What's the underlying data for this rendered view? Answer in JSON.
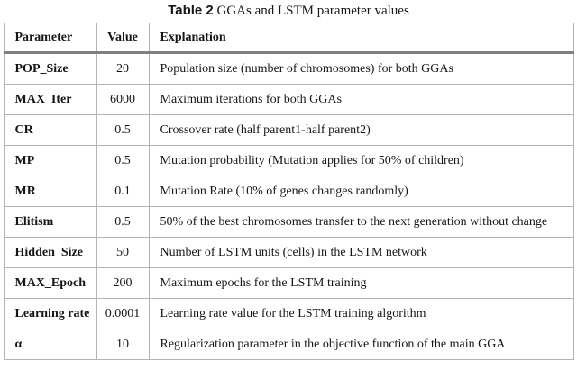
{
  "caption": {
    "label": "Table 2",
    "text": " GGAs and LSTM parameter values"
  },
  "table": {
    "headers": {
      "parameter": "Parameter",
      "value": "Value",
      "explanation": "Explanation"
    },
    "rows": [
      {
        "parameter": "POP_Size",
        "value": "20",
        "explanation": "Population size (number of chromosomes) for both GGAs"
      },
      {
        "parameter": "MAX_Iter",
        "value": "6000",
        "explanation": "Maximum iterations for both GGAs"
      },
      {
        "parameter": "CR",
        "value": "0.5",
        "explanation": "Crossover rate (half parent1-half parent2)"
      },
      {
        "parameter": "MP",
        "value": "0.5",
        "explanation": "Mutation probability (Mutation applies for 50% of children)"
      },
      {
        "parameter": "MR",
        "value": "0.1",
        "explanation": "Mutation Rate (10% of genes changes randomly)"
      },
      {
        "parameter": "Elitism",
        "value": "0.5",
        "explanation": "50% of the best chromosomes transfer to the next generation without change"
      },
      {
        "parameter": "Hidden_Size",
        "value": "50",
        "explanation": "Number of LSTM units (cells) in the LSTM network"
      },
      {
        "parameter": "MAX_Epoch",
        "value": "200",
        "explanation": "Maximum epochs for the LSTM training"
      },
      {
        "parameter": "Learning rate",
        "value": "0.0001",
        "explanation": "Learning rate value for the LSTM training algorithm"
      },
      {
        "parameter": "α",
        "value": "10",
        "explanation": "Regularization parameter in the objective function of the main GGA"
      }
    ]
  },
  "colors": {
    "text": "#161616",
    "grid_line": "#b3b3b3",
    "header_separator": "#7f7f7f",
    "background": "#ffffff"
  }
}
